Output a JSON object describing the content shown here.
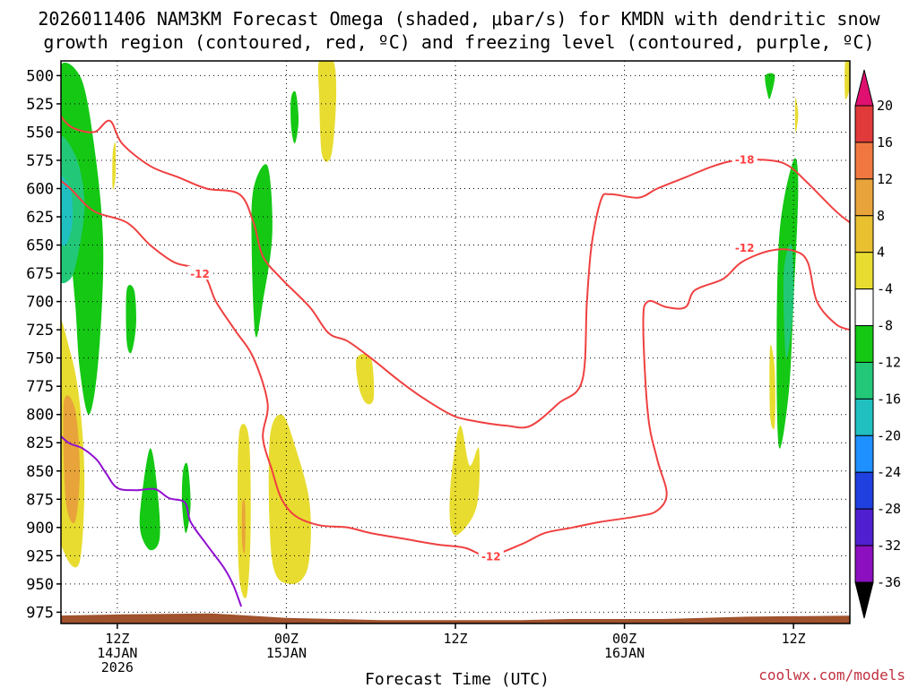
{
  "chart_data": {
    "type": "contour-filled",
    "title_line1": "2026011406 NAM3KM Forecast Omega (shaded, μbar/s) for KMDN with dendritic snow",
    "title_line2": "growth region (contoured, red, ºC) and freezing level (contoured, purple, ºC)",
    "xlabel": "Forecast Time (UTC)",
    "credit": "coolwx.com/models",
    "y_axis": {
      "unit": "hPa",
      "range": [
        487,
        985
      ],
      "ticks": [
        500,
        525,
        550,
        575,
        600,
        625,
        650,
        675,
        700,
        725,
        750,
        775,
        800,
        825,
        850,
        875,
        900,
        925,
        950,
        975
      ]
    },
    "x_axis": {
      "unit": "forecast hour",
      "range": [
        0,
        84
      ],
      "ticks": [
        {
          "hour": 6,
          "lines": [
            "12Z",
            "14JAN",
            "2026"
          ]
        },
        {
          "hour": 24,
          "lines": [
            "00Z",
            "15JAN"
          ]
        },
        {
          "hour": 42,
          "lines": [
            "12Z"
          ]
        },
        {
          "hour": 60,
          "lines": [
            "00Z",
            "16JAN"
          ]
        },
        {
          "hour": 78,
          "lines": [
            "12Z"
          ]
        }
      ],
      "vertical_gridlines_hours": [
        6,
        24,
        42,
        60,
        78
      ]
    },
    "colorbar": {
      "labels": [
        20,
        16,
        12,
        8,
        4,
        -4,
        -8,
        -12,
        -16,
        -20,
        -24,
        -28,
        -32,
        -36
      ],
      "colors": [
        "#e03a3a",
        "#f07840",
        "#e8a43a",
        "#e8c030",
        "#e8dc30",
        "#ffffff",
        "#14c814",
        "#22c878",
        "#20c0c0",
        "#1e90ff",
        "#2040e0",
        "#5020d0",
        "#8c10c0",
        "#a0a0a0"
      ],
      "top_arrow_color": "#e01070",
      "bottom_arrow_color": "#000000"
    },
    "terrain_color": "#a0522d",
    "shaded_regions": [
      {
        "level": "-4",
        "color": "#14c814",
        "points": [
          [
            -0.5,
            500
          ],
          [
            2.0,
            500
          ],
          [
            3.5,
            560
          ],
          [
            4.5,
            650
          ],
          [
            4.0,
            750
          ],
          [
            3.0,
            800
          ],
          [
            2.0,
            760
          ],
          [
            1.5,
            700
          ],
          [
            0.8,
            650
          ],
          [
            -0.5,
            620
          ]
        ]
      },
      {
        "level": "-8",
        "color": "#22c878",
        "points": [
          [
            -0.5,
            560
          ],
          [
            1.5,
            570
          ],
          [
            2.5,
            610
          ],
          [
            2.0,
            650
          ],
          [
            1.0,
            680
          ],
          [
            -0.5,
            670
          ]
        ]
      },
      {
        "level": "-12",
        "color": "#20c0c0",
        "points": [
          [
            -0.5,
            590
          ],
          [
            1.0,
            600
          ],
          [
            1.2,
            630
          ],
          [
            0.5,
            650
          ],
          [
            -0.5,
            640
          ]
        ]
      },
      {
        "level": "-4",
        "color": "#14c814",
        "points": [
          [
            7.0,
            690
          ],
          [
            7.8,
            690
          ],
          [
            8.0,
            720
          ],
          [
            7.5,
            745
          ],
          [
            7.0,
            735
          ]
        ]
      },
      {
        "level": "-4",
        "color": "#14c814",
        "points": [
          [
            8.5,
            880
          ],
          [
            9.5,
            830
          ],
          [
            10.3,
            870
          ],
          [
            10.5,
            910
          ],
          [
            9.5,
            920
          ],
          [
            8.5,
            905
          ]
        ]
      },
      {
        "level": "-4",
        "color": "#14c814",
        "points": [
          [
            13.0,
            850
          ],
          [
            13.5,
            845
          ],
          [
            13.8,
            880
          ],
          [
            13.3,
            905
          ],
          [
            12.9,
            880
          ]
        ]
      },
      {
        "level": "-4",
        "color": "#14c814",
        "points": [
          [
            20.5,
            600
          ],
          [
            22.0,
            580
          ],
          [
            22.5,
            640
          ],
          [
            21.5,
            700
          ],
          [
            20.7,
            730
          ],
          [
            20.3,
            650
          ]
        ]
      },
      {
        "level": "-4",
        "color": "#14c814",
        "points": [
          [
            24.5,
            520
          ],
          [
            25.0,
            515
          ],
          [
            25.3,
            540
          ],
          [
            24.9,
            560
          ],
          [
            24.5,
            545
          ]
        ]
      },
      {
        "level": "-4",
        "color": "#14c814",
        "points": [
          [
            75.0,
            500
          ],
          [
            76.0,
            500
          ],
          [
            75.5,
            520
          ],
          [
            75.2,
            515
          ]
        ]
      },
      {
        "level": "-4",
        "color": "#14c814",
        "points": [
          [
            76.5,
            640
          ],
          [
            78.0,
            575
          ],
          [
            78.5,
            600
          ],
          [
            78.0,
            700
          ],
          [
            77.5,
            780
          ],
          [
            76.5,
            830
          ],
          [
            76.2,
            760
          ]
        ]
      },
      {
        "level": "-8",
        "color": "#22c878",
        "points": [
          [
            77.0,
            670
          ],
          [
            77.8,
            650
          ],
          [
            78.0,
            700
          ],
          [
            77.3,
            750
          ],
          [
            77.0,
            720
          ]
        ]
      },
      {
        "level": "4",
        "color": "#e8dc30",
        "points": [
          [
            -0.5,
            720
          ],
          [
            1.0,
            745
          ],
          [
            2.0,
            790
          ],
          [
            2.5,
            860
          ],
          [
            2.0,
            930
          ],
          [
            0.5,
            925
          ],
          [
            -0.5,
            880
          ]
        ]
      },
      {
        "level": "8",
        "color": "#e8a43a",
        "points": [
          [
            0.3,
            790
          ],
          [
            1.5,
            795
          ],
          [
            2.0,
            850
          ],
          [
            1.5,
            895
          ],
          [
            0.5,
            875
          ]
        ]
      },
      {
        "level": "4",
        "color": "#e8dc30",
        "points": [
          [
            5.5,
            570
          ],
          [
            5.8,
            560
          ],
          [
            5.8,
            590
          ],
          [
            5.5,
            600
          ]
        ]
      },
      {
        "level": "4",
        "color": "#e8dc30",
        "points": [
          [
            19.0,
            815
          ],
          [
            20.0,
            820
          ],
          [
            20.2,
            900
          ],
          [
            19.8,
            960
          ],
          [
            19.0,
            945
          ],
          [
            18.8,
            880
          ]
        ]
      },
      {
        "level": "8",
        "color": "#e8a43a",
        "points": [
          [
            19.3,
            880
          ],
          [
            19.6,
            880
          ],
          [
            19.6,
            920
          ],
          [
            19.3,
            915
          ]
        ]
      },
      {
        "level": "4",
        "color": "#e8dc30",
        "points": [
          [
            22.2,
            825
          ],
          [
            23.5,
            800
          ],
          [
            25.0,
            830
          ],
          [
            26.5,
            880
          ],
          [
            26.3,
            935
          ],
          [
            24.5,
            950
          ],
          [
            22.5,
            930
          ]
        ]
      },
      {
        "level": "4",
        "color": "#e8dc30",
        "points": [
          [
            27.5,
            487
          ],
          [
            29.0,
            487
          ],
          [
            29.3,
            520
          ],
          [
            28.8,
            570
          ],
          [
            27.8,
            570
          ],
          [
            27.5,
            520
          ]
        ]
      },
      {
        "level": "4",
        "color": "#e8dc30",
        "points": [
          [
            31.5,
            750
          ],
          [
            33.0,
            750
          ],
          [
            33.3,
            785
          ],
          [
            32.5,
            790
          ],
          [
            31.7,
            775
          ]
        ]
      },
      {
        "level": "4",
        "color": "#e8dc30",
        "points": [
          [
            41.5,
            860
          ],
          [
            42.5,
            810
          ],
          [
            43.5,
            845
          ],
          [
            44.5,
            830
          ],
          [
            44.3,
            880
          ],
          [
            42.5,
            905
          ],
          [
            41.5,
            900
          ]
        ]
      },
      {
        "level": "4",
        "color": "#e8dc30",
        "points": [
          [
            75.5,
            740
          ],
          [
            76.0,
            760
          ],
          [
            76.0,
            810
          ],
          [
            75.5,
            800
          ]
        ]
      },
      {
        "level": "4",
        "color": "#e8dc30",
        "points": [
          [
            78.2,
            520
          ],
          [
            78.5,
            535
          ],
          [
            78.2,
            550
          ]
        ]
      },
      {
        "level": "4",
        "color": "#e8dc30",
        "points": [
          [
            83.5,
            487
          ],
          [
            84.0,
            487
          ],
          [
            84.0,
            510
          ],
          [
            83.5,
            520
          ]
        ]
      }
    ],
    "contours": [
      {
        "name": "dgz-cold-upper-left",
        "color": "#f04040",
        "points": [
          [
            -0.5,
            530
          ],
          [
            1.0,
            545
          ],
          [
            3.5,
            550
          ],
          [
            5.2,
            540
          ],
          [
            6.5,
            560
          ],
          [
            9.5,
            580
          ],
          [
            12.5,
            590
          ],
          [
            15.5,
            600
          ],
          [
            19.0,
            605
          ],
          [
            20.5,
            630
          ],
          [
            21.5,
            660
          ],
          [
            23.5,
            680
          ],
          [
            26.5,
            705
          ],
          [
            28.5,
            728
          ],
          [
            30.5,
            735
          ],
          [
            33.0,
            750
          ],
          [
            36.0,
            770
          ],
          [
            38.5,
            785
          ],
          [
            41.5,
            800
          ],
          [
            43.5,
            805
          ],
          [
            47.5,
            810
          ],
          [
            50.0,
            810
          ],
          [
            53.0,
            790
          ],
          [
            55.5,
            770
          ],
          [
            56.0,
            700
          ],
          [
            56.5,
            650
          ],
          [
            57.5,
            610
          ],
          [
            58.5,
            605
          ],
          [
            61.5,
            608
          ],
          [
            63.5,
            600
          ],
          [
            66.5,
            590
          ],
          [
            69.5,
            580
          ],
          [
            72.0,
            575
          ],
          [
            75.5,
            575
          ],
          [
            77.5,
            580
          ],
          [
            79.5,
            595
          ],
          [
            82.5,
            620
          ],
          [
            84.0,
            630
          ]
        ]
      },
      {
        "name": "dgz-warm-lower",
        "color": "#f04040",
        "points": [
          [
            -0.5,
            590
          ],
          [
            1.0,
            600
          ],
          [
            3.5,
            620
          ],
          [
            7.0,
            630
          ],
          [
            9.5,
            650
          ],
          [
            12.0,
            665
          ],
          [
            14.0,
            670
          ],
          [
            15.5,
            680
          ],
          [
            16.5,
            700
          ],
          [
            18.5,
            725
          ],
          [
            20.5,
            750
          ],
          [
            22.0,
            790
          ],
          [
            21.5,
            820
          ],
          [
            22.5,
            850
          ],
          [
            23.5,
            875
          ],
          [
            25.0,
            890
          ],
          [
            27.5,
            898
          ],
          [
            30.5,
            900
          ],
          [
            33.0,
            905
          ],
          [
            36.5,
            910
          ],
          [
            40.0,
            915
          ],
          [
            43.0,
            918
          ],
          [
            45.5,
            925
          ],
          [
            49.0,
            915
          ],
          [
            51.5,
            905
          ],
          [
            54.5,
            900
          ],
          [
            57.5,
            895
          ],
          [
            61.5,
            890
          ],
          [
            63.5,
            885
          ],
          [
            64.5,
            870
          ],
          [
            63.5,
            840
          ],
          [
            62.5,
            800
          ],
          [
            62.0,
            720
          ],
          [
            62.5,
            700
          ],
          [
            64.5,
            705
          ],
          [
            66.5,
            705
          ],
          [
            67.5,
            690
          ],
          [
            70.5,
            680
          ],
          [
            72.5,
            665
          ],
          [
            75.5,
            655
          ],
          [
            78.0,
            655
          ],
          [
            79.5,
            665
          ],
          [
            80.5,
            700
          ],
          [
            82.5,
            720
          ],
          [
            84.0,
            725
          ]
        ]
      },
      {
        "name": "freezing-level",
        "color": "#9010d0",
        "points": [
          [
            -0.5,
            815
          ],
          [
            0.8,
            825
          ],
          [
            2.3,
            830
          ],
          [
            3.8,
            840
          ],
          [
            4.8,
            852
          ],
          [
            6.0,
            865
          ],
          [
            8.0,
            867
          ],
          [
            10.0,
            866
          ],
          [
            11.5,
            874
          ],
          [
            13.2,
            878
          ],
          [
            13.8,
            895
          ],
          [
            15.5,
            915
          ],
          [
            17.3,
            935
          ],
          [
            18.3,
            950
          ],
          [
            19.2,
            970
          ]
        ]
      }
    ],
    "contour_labels": [
      {
        "text": "-12",
        "x": 14.8,
        "y": 675
      },
      {
        "text": "-18",
        "x": 72.8,
        "y": 574
      },
      {
        "text": "-12",
        "x": 72.8,
        "y": 652
      },
      {
        "text": "-12",
        "x": 45.8,
        "y": 925
      }
    ],
    "terrain_profile": [
      [
        -0.5,
        978
      ],
      [
        6.0,
        977
      ],
      [
        16.0,
        976
      ],
      [
        24.0,
        980
      ],
      [
        34.0,
        982
      ],
      [
        49.0,
        982
      ],
      [
        54.0,
        981
      ],
      [
        64.0,
        981
      ],
      [
        73.0,
        979
      ],
      [
        84.0,
        978
      ]
    ]
  }
}
